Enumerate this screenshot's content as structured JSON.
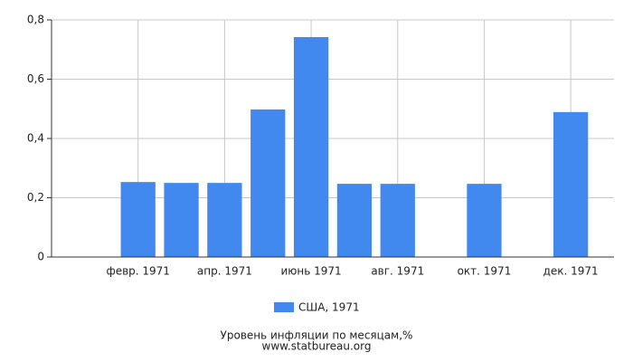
{
  "chart_data": {
    "type": "bar",
    "categories": [
      null,
      "февр. 1971",
      null,
      "апр. 1971",
      null,
      "июнь 1971",
      null,
      "авг. 1971",
      null,
      "окт. 1971",
      null,
      "дек. 1971"
    ],
    "series": [
      {
        "name": "США, 1971",
        "color": "#4289ef",
        "values": [
          null,
          0.253,
          0.25,
          0.25,
          0.498,
          0.742,
          0.247,
          0.247,
          null,
          0.247,
          null,
          0.489
        ]
      }
    ],
    "ylim": [
      0,
      0.8
    ],
    "yticks": [
      0,
      {
        "value": 0.2,
        "label": "0,2"
      },
      {
        "value": 0.4,
        "label": "0,4"
      },
      {
        "value": 0.6,
        "label": "0,6"
      },
      {
        "value": 0.8,
        "label": "0,8"
      }
    ],
    "grid": true,
    "legend": "bottom",
    "xlabel": "Уровень инфляции по месяцам,%",
    "source": "www.statbureau.org"
  }
}
